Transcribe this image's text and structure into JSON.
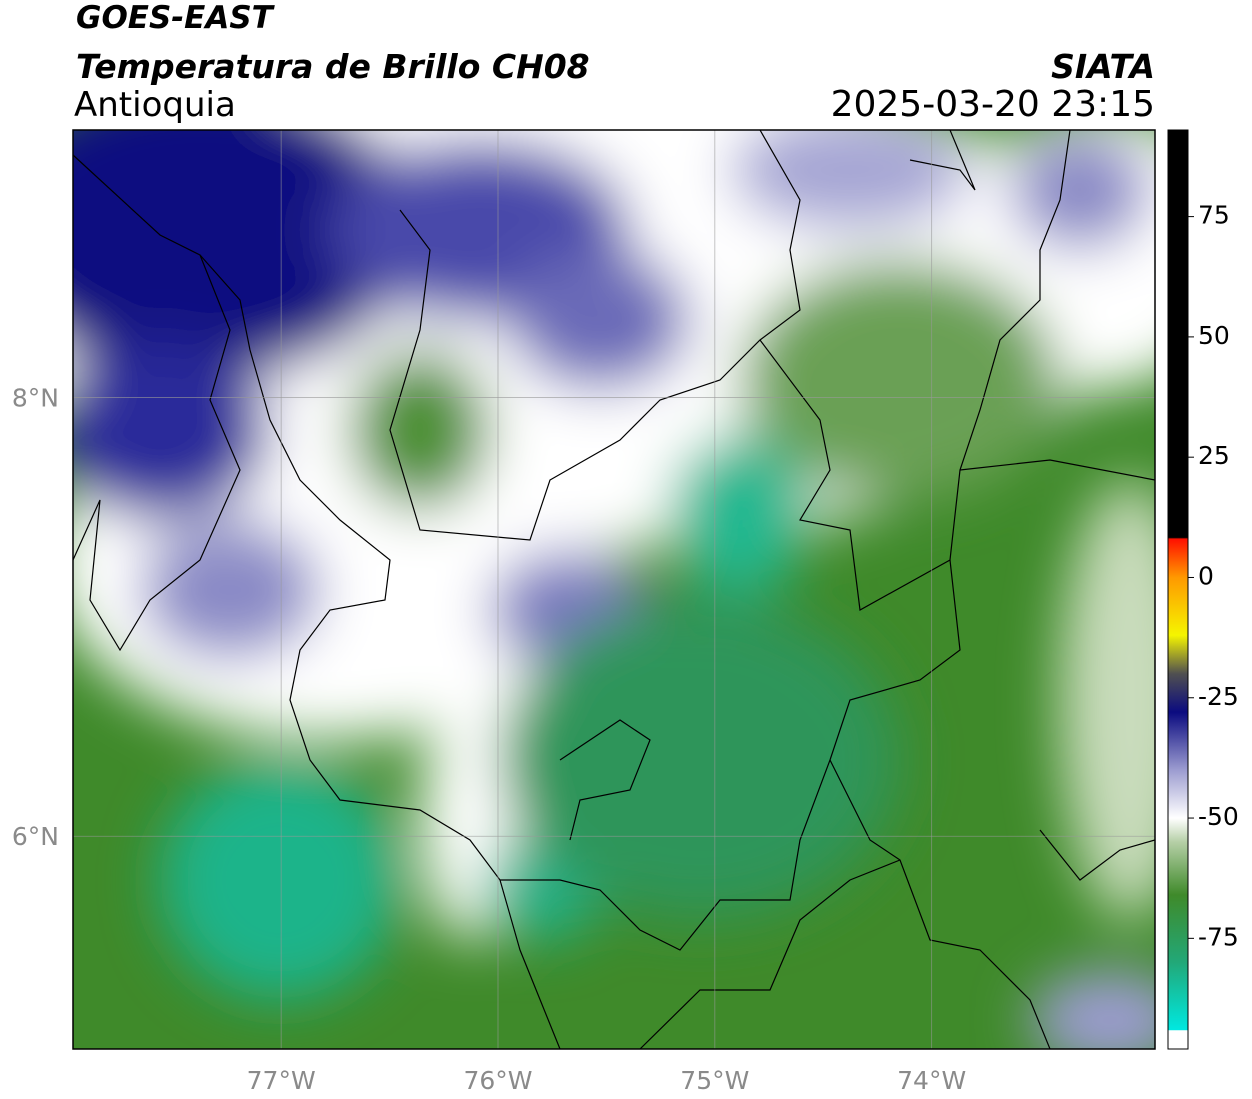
{
  "header": {
    "title": "GOES-EAST",
    "subtitle": "Temperatura de Brillo CH08",
    "region": "Antioquia",
    "source": "SIATA",
    "timestamp": "2025-03-20 23:15"
  },
  "map": {
    "xlim": [
      -77.96,
      -72.97
    ],
    "ylim": [
      5.03,
      9.22
    ],
    "xticks": [
      {
        "value": -77,
        "label": "77°W"
      },
      {
        "value": -76,
        "label": "76°W"
      },
      {
        "value": -75,
        "label": "75°W"
      },
      {
        "value": -74,
        "label": "74°W"
      }
    ],
    "yticks": [
      {
        "value": 6,
        "label": "6°N"
      },
      {
        "value": 8,
        "label": "8°N"
      }
    ],
    "grid": true
  },
  "colorbar": {
    "clim": [
      -98,
      93
    ],
    "ticks": [
      75,
      50,
      25,
      0,
      -25,
      -50,
      -75
    ],
    "stops": [
      {
        "value": -98,
        "color": "#ffffff"
      },
      {
        "value": -94.2,
        "color": "#ffffff"
      },
      {
        "value": -94,
        "color": "#00e8e0"
      },
      {
        "value": -80,
        "color": "#22a878"
      },
      {
        "value": -66,
        "color": "#3f8a2a"
      },
      {
        "value": -55,
        "color": "#b5cfa6"
      },
      {
        "value": -50,
        "color": "#ffffff"
      },
      {
        "value": -40,
        "color": "#9c9cd0"
      },
      {
        "value": -28,
        "color": "#0b0b80"
      },
      {
        "value": -20,
        "color": "#505050"
      },
      {
        "value": -12,
        "color": "#f5f500"
      },
      {
        "value": 0,
        "color": "#ff9900"
      },
      {
        "value": 8,
        "color": "#ff1000"
      },
      {
        "value": 8.3,
        "color": "#000000"
      },
      {
        "value": 93,
        "color": "#000000"
      }
    ]
  }
}
